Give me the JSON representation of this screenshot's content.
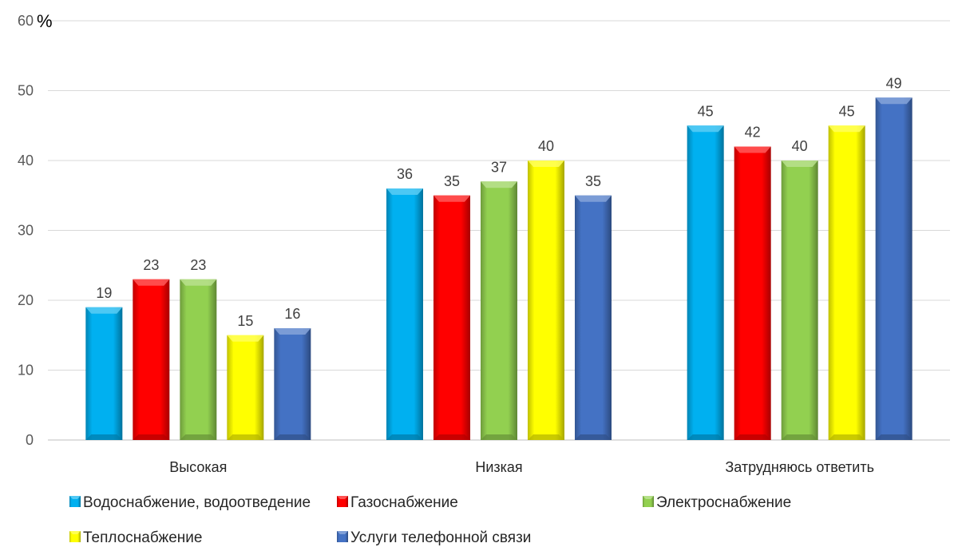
{
  "chart_data": {
    "type": "bar",
    "title": "",
    "xlabel": "",
    "ylabel": "%",
    "ylim": [
      0,
      60
    ],
    "yticks": [
      0,
      10,
      20,
      30,
      40,
      50,
      60
    ],
    "grid": true,
    "legend": "bottom",
    "categories": [
      "Высокая",
      "Низкая",
      "Затрудняюсь ответить"
    ],
    "series": [
      {
        "name": "Водоснабжение, водоотведение",
        "color": "#00B0F0",
        "values": [
          19,
          36,
          45
        ]
      },
      {
        "name": "Газоснабжение",
        "color": "#FF0000",
        "values": [
          23,
          35,
          42
        ]
      },
      {
        "name": "Электроснабжение",
        "color": "#92D050",
        "values": [
          23,
          37,
          40
        ]
      },
      {
        "name": "Теплоснабжение",
        "color": "#FFFF00",
        "values": [
          15,
          40,
          45
        ]
      },
      {
        "name": "Услуги телефонной связи",
        "color": "#4472C4",
        "values": [
          16,
          35,
          49
        ]
      }
    ]
  }
}
